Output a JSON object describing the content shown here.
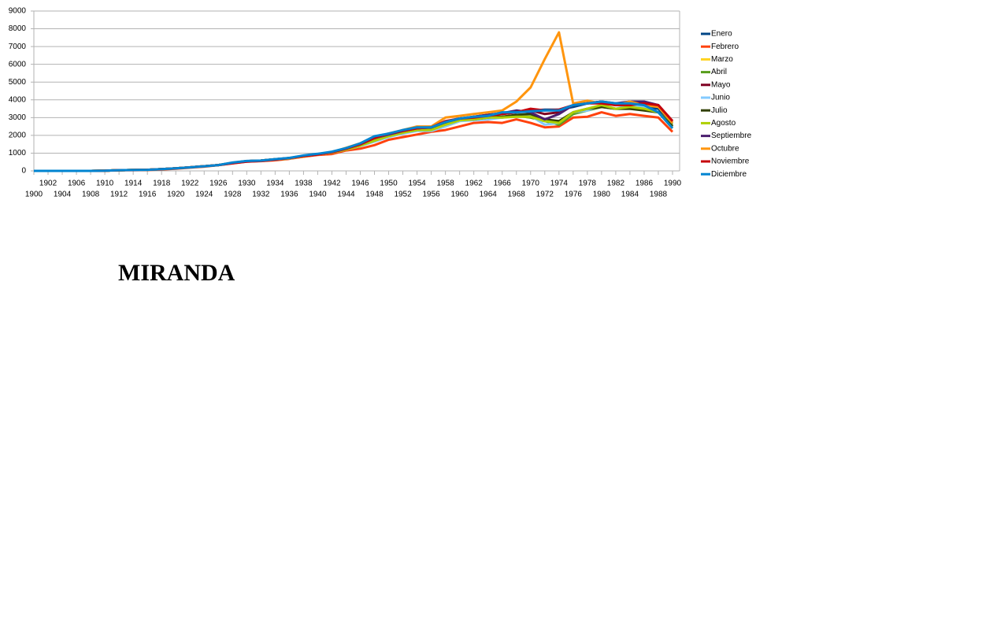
{
  "chart_data": {
    "type": "line",
    "title": "MIRANDA",
    "x": [
      1900,
      1902,
      1904,
      1906,
      1908,
      1910,
      1912,
      1914,
      1916,
      1918,
      1920,
      1922,
      1924,
      1926,
      1928,
      1930,
      1932,
      1934,
      1936,
      1938,
      1940,
      1942,
      1944,
      1946,
      1948,
      1950,
      1952,
      1954,
      1956,
      1958,
      1960,
      1962,
      1964,
      1966,
      1968,
      1970,
      1972,
      1974,
      1976,
      1978,
      1980,
      1982,
      1984,
      1986,
      1988,
      1990
    ],
    "xlim": [
      1900,
      1991
    ],
    "xticks": [
      1900,
      1902,
      1904,
      1906,
      1908,
      1910,
      1912,
      1914,
      1916,
      1918,
      1920,
      1922,
      1924,
      1926,
      1928,
      1930,
      1932,
      1934,
      1936,
      1938,
      1940,
      1942,
      1944,
      1946,
      1948,
      1950,
      1952,
      1954,
      1956,
      1958,
      1960,
      1962,
      1964,
      1966,
      1968,
      1970,
      1972,
      1974,
      1976,
      1978,
      1980,
      1982,
      1984,
      1986,
      1988,
      1990
    ],
    "ylim": [
      0,
      9000
    ],
    "yticks": [
      0,
      1000,
      2000,
      3000,
      4000,
      5000,
      6000,
      7000,
      8000,
      9000
    ],
    "grid": true,
    "legend": "right",
    "series": [
      {
        "name": "Enero",
        "color": "#004586",
        "values": [
          0,
          0,
          0,
          0,
          0,
          10,
          40,
          50,
          60,
          100,
          140,
          200,
          260,
          330,
          450,
          550,
          580,
          650,
          720,
          850,
          950,
          1050,
          1250,
          1500,
          1850,
          2050,
          2250,
          2400,
          2450,
          2750,
          2950,
          3000,
          3100,
          3200,
          3300,
          3400,
          3450,
          3450,
          3600,
          3800,
          3900,
          3700,
          3800,
          3600,
          3500,
          2500
        ]
      },
      {
        "name": "Febrero",
        "color": "#ff420e",
        "values": [
          0,
          0,
          0,
          0,
          0,
          10,
          30,
          40,
          50,
          80,
          120,
          180,
          240,
          320,
          420,
          520,
          550,
          600,
          680,
          800,
          900,
          950,
          1150,
          1250,
          1450,
          1750,
          1900,
          2050,
          2200,
          2300,
          2500,
          2700,
          2750,
          2700,
          2900,
          2700,
          2450,
          2500,
          3000,
          3050,
          3300,
          3100,
          3200,
          3100,
          3000,
          2200
        ]
      },
      {
        "name": "Marzo",
        "color": "#ffd320",
        "values": [
          0,
          0,
          0,
          0,
          0,
          10,
          40,
          50,
          60,
          100,
          140,
          200,
          260,
          330,
          450,
          540,
          570,
          640,
          700,
          820,
          930,
          1030,
          1200,
          1400,
          1700,
          1950,
          2150,
          2300,
          2300,
          2500,
          2800,
          2900,
          3000,
          3050,
          3100,
          3000,
          2800,
          2700,
          3300,
          3500,
          3700,
          3500,
          3600,
          3500,
          3300,
          2500
        ]
      },
      {
        "name": "Abril",
        "color": "#579d1c",
        "values": [
          0,
          0,
          0,
          0,
          0,
          10,
          40,
          50,
          60,
          100,
          140,
          200,
          260,
          330,
          450,
          540,
          570,
          640,
          710,
          830,
          940,
          1040,
          1220,
          1450,
          1750,
          2000,
          2200,
          2350,
          2350,
          2600,
          2850,
          2950,
          3000,
          3000,
          3100,
          3000,
          2800,
          2600,
          3200,
          3400,
          3600,
          3500,
          3500,
          3500,
          3300,
          2600
        ]
      },
      {
        "name": "Mayo",
        "color": "#7e0021",
        "values": [
          0,
          0,
          0,
          0,
          0,
          10,
          40,
          50,
          60,
          100,
          140,
          200,
          260,
          330,
          450,
          550,
          580,
          650,
          720,
          850,
          950,
          1050,
          1250,
          1500,
          1850,
          2050,
          2250,
          2400,
          2450,
          2700,
          2900,
          3050,
          3150,
          3250,
          3350,
          3400,
          3200,
          3300,
          3700,
          3800,
          3900,
          3700,
          3900,
          3800,
          3700,
          2800
        ]
      },
      {
        "name": "Junio",
        "color": "#83caff",
        "values": [
          0,
          0,
          0,
          0,
          0,
          10,
          40,
          50,
          60,
          100,
          140,
          200,
          260,
          330,
          450,
          540,
          570,
          640,
          700,
          820,
          930,
          1030,
          1200,
          1400,
          1650,
          1900,
          2100,
          2250,
          2250,
          2500,
          2800,
          2850,
          2900,
          3000,
          3100,
          3100,
          2600,
          2700,
          3300,
          3400,
          3700,
          3500,
          3700,
          3600,
          3300,
          2500
        ]
      },
      {
        "name": "Julio",
        "color": "#314004",
        "values": [
          0,
          0,
          0,
          0,
          0,
          10,
          40,
          50,
          60,
          100,
          140,
          200,
          260,
          330,
          450,
          550,
          580,
          650,
          720,
          840,
          940,
          1040,
          1230,
          1450,
          1780,
          2000,
          2200,
          2350,
          2350,
          2650,
          2900,
          2900,
          3000,
          3050,
          3150,
          3200,
          2900,
          2800,
          3300,
          3500,
          3600,
          3500,
          3500,
          3400,
          3300,
          2500
        ]
      },
      {
        "name": "Agosto",
        "color": "#aecf00",
        "values": [
          0,
          0,
          0,
          0,
          0,
          10,
          40,
          50,
          60,
          100,
          140,
          200,
          260,
          330,
          450,
          540,
          570,
          640,
          700,
          820,
          930,
          1030,
          1200,
          1420,
          1700,
          1950,
          2150,
          2300,
          2300,
          2600,
          2850,
          2900,
          3000,
          3000,
          3050,
          3050,
          2800,
          2700,
          3300,
          3500,
          3700,
          3500,
          3600,
          3500,
          3300,
          2400
        ]
      },
      {
        "name": "Septiembre",
        "color": "#4b1f6f",
        "values": [
          0,
          0,
          0,
          0,
          0,
          10,
          40,
          50,
          60,
          100,
          140,
          200,
          260,
          330,
          450,
          550,
          580,
          650,
          720,
          850,
          950,
          1050,
          1250,
          1500,
          1850,
          2050,
          2250,
          2400,
          2450,
          2750,
          2950,
          3050,
          3150,
          3250,
          3400,
          3300,
          2900,
          3200,
          3700,
          3800,
          3900,
          3800,
          3900,
          3900,
          3700,
          2700
        ]
      },
      {
        "name": "Octubre",
        "color": "#ff950e",
        "values": [
          0,
          0,
          0,
          0,
          0,
          10,
          40,
          50,
          60,
          100,
          140,
          200,
          260,
          330,
          450,
          550,
          580,
          650,
          720,
          800,
          950,
          1050,
          1300,
          1550,
          1850,
          2100,
          2300,
          2500,
          2500,
          3000,
          3100,
          3200,
          3300,
          3400,
          3900,
          4700,
          6300,
          7800,
          3800,
          3950,
          3800,
          3700,
          3900,
          3700,
          3600,
          2700
        ]
      },
      {
        "name": "Noviembre",
        "color": "#c5000b",
        "values": [
          0,
          0,
          0,
          0,
          0,
          10,
          40,
          50,
          60,
          100,
          140,
          200,
          260,
          330,
          430,
          520,
          560,
          630,
          720,
          830,
          920,
          1050,
          1250,
          1500,
          1850,
          2100,
          2250,
          2400,
          2450,
          2800,
          2950,
          3000,
          3100,
          3200,
          3300,
          3500,
          3400,
          3450,
          3700,
          3800,
          3800,
          3700,
          3700,
          3800,
          3700,
          2800
        ]
      },
      {
        "name": "Diciembre",
        "color": "#0084d1",
        "values": [
          0,
          0,
          0,
          0,
          0,
          10,
          40,
          50,
          60,
          100,
          140,
          200,
          260,
          330,
          470,
          560,
          580,
          660,
          730,
          870,
          960,
          1080,
          1280,
          1550,
          1950,
          2100,
          2300,
          2450,
          2450,
          2750,
          2950,
          3050,
          3100,
          3300,
          3300,
          3350,
          3400,
          3400,
          3700,
          3800,
          3900,
          3800,
          3800,
          3700,
          3300,
          2400
        ]
      }
    ]
  }
}
